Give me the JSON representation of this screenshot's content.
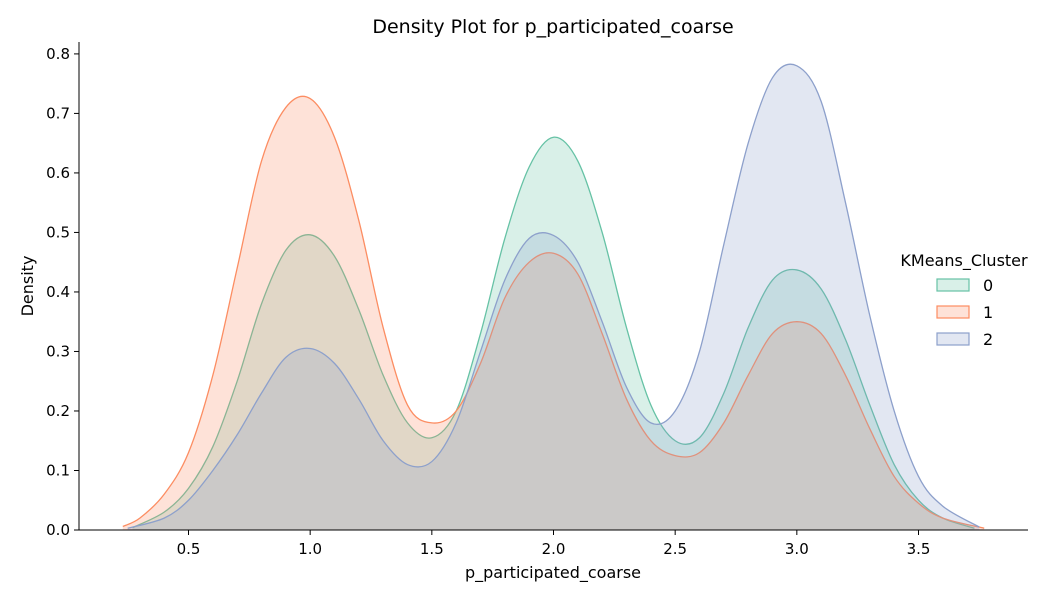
{
  "chart_data": {
    "type": "area",
    "title": "Density Plot for p_participated_coarse",
    "xlabel": "p_participated_coarse",
    "ylabel": "Density",
    "xlim": [
      0.05,
      3.95
    ],
    "ylim": [
      0.0,
      0.82
    ],
    "xticks": [
      0.5,
      1.0,
      1.5,
      2.0,
      2.5,
      3.0,
      3.5
    ],
    "xtick_labels": [
      "0.5",
      "1.0",
      "1.5",
      "2.0",
      "2.5",
      "3.0",
      "3.5"
    ],
    "yticks": [
      0.0,
      0.1,
      0.2,
      0.3,
      0.4,
      0.5,
      0.6,
      0.7,
      0.8
    ],
    "ytick_labels": [
      "0.0",
      "0.1",
      "0.2",
      "0.3",
      "0.4",
      "0.5",
      "0.6",
      "0.7",
      "0.8"
    ],
    "grid": false,
    "legend": {
      "title": "KMeans_Cluster",
      "placement": "center-right"
    },
    "series": [
      {
        "name": "0",
        "color": "#66c2a5",
        "x_range": [
          0.27,
          3.73
        ],
        "x": [
          0.27,
          0.4,
          0.5,
          0.6,
          0.7,
          0.8,
          0.9,
          1.0,
          1.1,
          1.2,
          1.3,
          1.4,
          1.5,
          1.6,
          1.7,
          1.8,
          1.9,
          2.0,
          2.1,
          2.2,
          2.3,
          2.4,
          2.5,
          2.6,
          2.7,
          2.8,
          2.9,
          3.0,
          3.1,
          3.2,
          3.3,
          3.4,
          3.5,
          3.6,
          3.73
        ],
        "values": [
          0.004,
          0.03,
          0.07,
          0.14,
          0.25,
          0.38,
          0.47,
          0.496,
          0.46,
          0.37,
          0.26,
          0.18,
          0.155,
          0.2,
          0.33,
          0.49,
          0.61,
          0.66,
          0.62,
          0.5,
          0.34,
          0.21,
          0.15,
          0.155,
          0.23,
          0.34,
          0.42,
          0.437,
          0.405,
          0.32,
          0.21,
          0.11,
          0.05,
          0.02,
          0.003
        ]
      },
      {
        "name": "1",
        "color": "#fc8d62",
        "x_range": [
          0.23,
          3.77
        ],
        "x": [
          0.23,
          0.3,
          0.4,
          0.5,
          0.6,
          0.7,
          0.8,
          0.9,
          1.0,
          1.1,
          1.2,
          1.3,
          1.4,
          1.5,
          1.6,
          1.7,
          1.8,
          1.9,
          2.0,
          2.1,
          2.2,
          2.3,
          2.4,
          2.5,
          2.6,
          2.7,
          2.8,
          2.9,
          3.0,
          3.1,
          3.2,
          3.3,
          3.4,
          3.5,
          3.6,
          3.77
        ],
        "values": [
          0.006,
          0.02,
          0.06,
          0.13,
          0.26,
          0.44,
          0.62,
          0.71,
          0.725,
          0.66,
          0.52,
          0.34,
          0.21,
          0.18,
          0.2,
          0.28,
          0.39,
          0.45,
          0.465,
          0.43,
          0.33,
          0.22,
          0.15,
          0.125,
          0.13,
          0.18,
          0.26,
          0.33,
          0.35,
          0.33,
          0.26,
          0.17,
          0.09,
          0.045,
          0.02,
          0.003
        ]
      },
      {
        "name": "2",
        "color": "#8da0cb",
        "x_range": [
          0.25,
          3.75
        ],
        "x": [
          0.25,
          0.4,
          0.5,
          0.6,
          0.7,
          0.8,
          0.9,
          1.0,
          1.1,
          1.2,
          1.3,
          1.4,
          1.5,
          1.6,
          1.7,
          1.8,
          1.9,
          2.0,
          2.1,
          2.2,
          2.3,
          2.4,
          2.5,
          2.6,
          2.7,
          2.8,
          2.9,
          3.0,
          3.1,
          3.2,
          3.3,
          3.4,
          3.5,
          3.6,
          3.75
        ],
        "values": [
          0.003,
          0.02,
          0.05,
          0.1,
          0.16,
          0.23,
          0.29,
          0.305,
          0.28,
          0.22,
          0.15,
          0.11,
          0.115,
          0.18,
          0.3,
          0.42,
          0.49,
          0.495,
          0.45,
          0.35,
          0.24,
          0.18,
          0.2,
          0.3,
          0.48,
          0.65,
          0.76,
          0.78,
          0.72,
          0.55,
          0.36,
          0.2,
          0.09,
          0.04,
          0.005
        ]
      }
    ]
  }
}
